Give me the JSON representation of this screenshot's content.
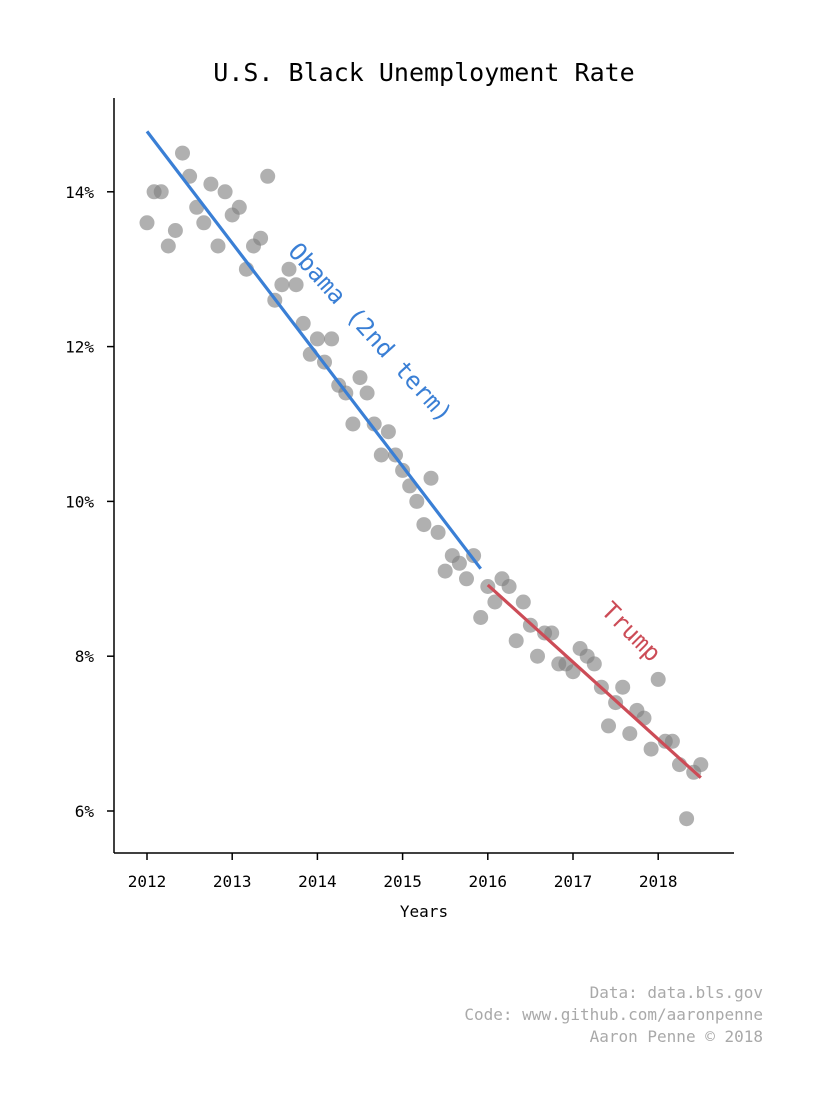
{
  "chart_data": {
    "type": "scatter",
    "title": "U.S. Black Unemployment Rate",
    "xlabel": "Years",
    "ylabel": "",
    "xlim": [
      2011.6,
      2018.9
    ],
    "ylim": [
      5.5,
      15.2
    ],
    "x_ticks": [
      2012,
      2013,
      2014,
      2015,
      2016,
      2017,
      2018
    ],
    "x_tick_labels": [
      "2012",
      "2013",
      "2014",
      "2015",
      "2016",
      "2017",
      "2018"
    ],
    "y_ticks": [
      6,
      8,
      10,
      12,
      14
    ],
    "y_tick_labels": [
      "6%",
      "8%",
      "10%",
      "12%",
      "14%"
    ],
    "grid": false,
    "point_color": "#808080",
    "series": [
      {
        "x": [
          2012.0,
          2012.083,
          2012.167,
          2012.25,
          2012.333,
          2012.417,
          2012.5,
          2012.583,
          2012.667,
          2012.75,
          2012.833,
          2012.917,
          2013.0,
          2013.083,
          2013.167,
          2013.25,
          2013.333,
          2013.417,
          2013.5,
          2013.583,
          2013.667,
          2013.75,
          2013.833,
          2013.917,
          2014.0,
          2014.083,
          2014.167,
          2014.25,
          2014.333,
          2014.417,
          2014.5,
          2014.583,
          2014.667,
          2014.75,
          2014.833,
          2014.917,
          2015.0,
          2015.083,
          2015.167,
          2015.25,
          2015.333,
          2015.417,
          2015.5,
          2015.583,
          2015.667,
          2015.75,
          2015.833,
          2015.917,
          2016.0,
          2016.083,
          2016.167,
          2016.25,
          2016.333,
          2016.417,
          2016.5,
          2016.583,
          2016.667,
          2016.75,
          2016.833,
          2016.917,
          2017.0,
          2017.083,
          2017.167,
          2017.25,
          2017.333,
          2017.417,
          2017.5,
          2017.583,
          2017.667,
          2017.75,
          2017.833,
          2017.917,
          2018.0,
          2018.083,
          2018.167,
          2018.25,
          2018.333,
          2018.417,
          2018.5
        ],
        "y": [
          13.6,
          14.0,
          14.0,
          13.3,
          13.5,
          14.5,
          14.2,
          13.8,
          13.6,
          14.1,
          13.3,
          14.0,
          13.7,
          13.8,
          13.0,
          13.3,
          13.4,
          14.2,
          12.6,
          12.8,
          13.0,
          12.8,
          12.3,
          11.9,
          12.1,
          11.8,
          12.1,
          11.5,
          11.4,
          11.0,
          11.6,
          11.4,
          11.0,
          10.6,
          10.9,
          10.6,
          10.4,
          10.2,
          10.0,
          9.7,
          10.3,
          9.6,
          9.1,
          9.3,
          9.2,
          9.0,
          9.3,
          8.5,
          8.9,
          8.7,
          9.0,
          8.9,
          8.2,
          8.7,
          8.4,
          8.0,
          8.3,
          8.3,
          7.9,
          7.9,
          7.8,
          8.1,
          8.0,
          7.9,
          7.6,
          7.1,
          7.4,
          7.6,
          7.0,
          7.3,
          7.2,
          6.8,
          7.7,
          6.9,
          6.9,
          6.6,
          5.9,
          6.5,
          6.6
        ]
      }
    ],
    "trend_lines": [
      {
        "label": "Obama (2nd term)",
        "color": "#3a7fd5",
        "x": [
          2012.0,
          2015.917
        ],
        "y": [
          14.78,
          9.13
        ]
      },
      {
        "label": "Trump",
        "color": "#cc4c57",
        "x": [
          2016.0,
          2018.5
        ],
        "y": [
          8.92,
          6.43
        ]
      }
    ]
  },
  "credits": {
    "line1": "Data: data.bls.gov",
    "line2": "Code: www.github.com/aaronpenne",
    "line3": "Aaron Penne © 2018"
  }
}
